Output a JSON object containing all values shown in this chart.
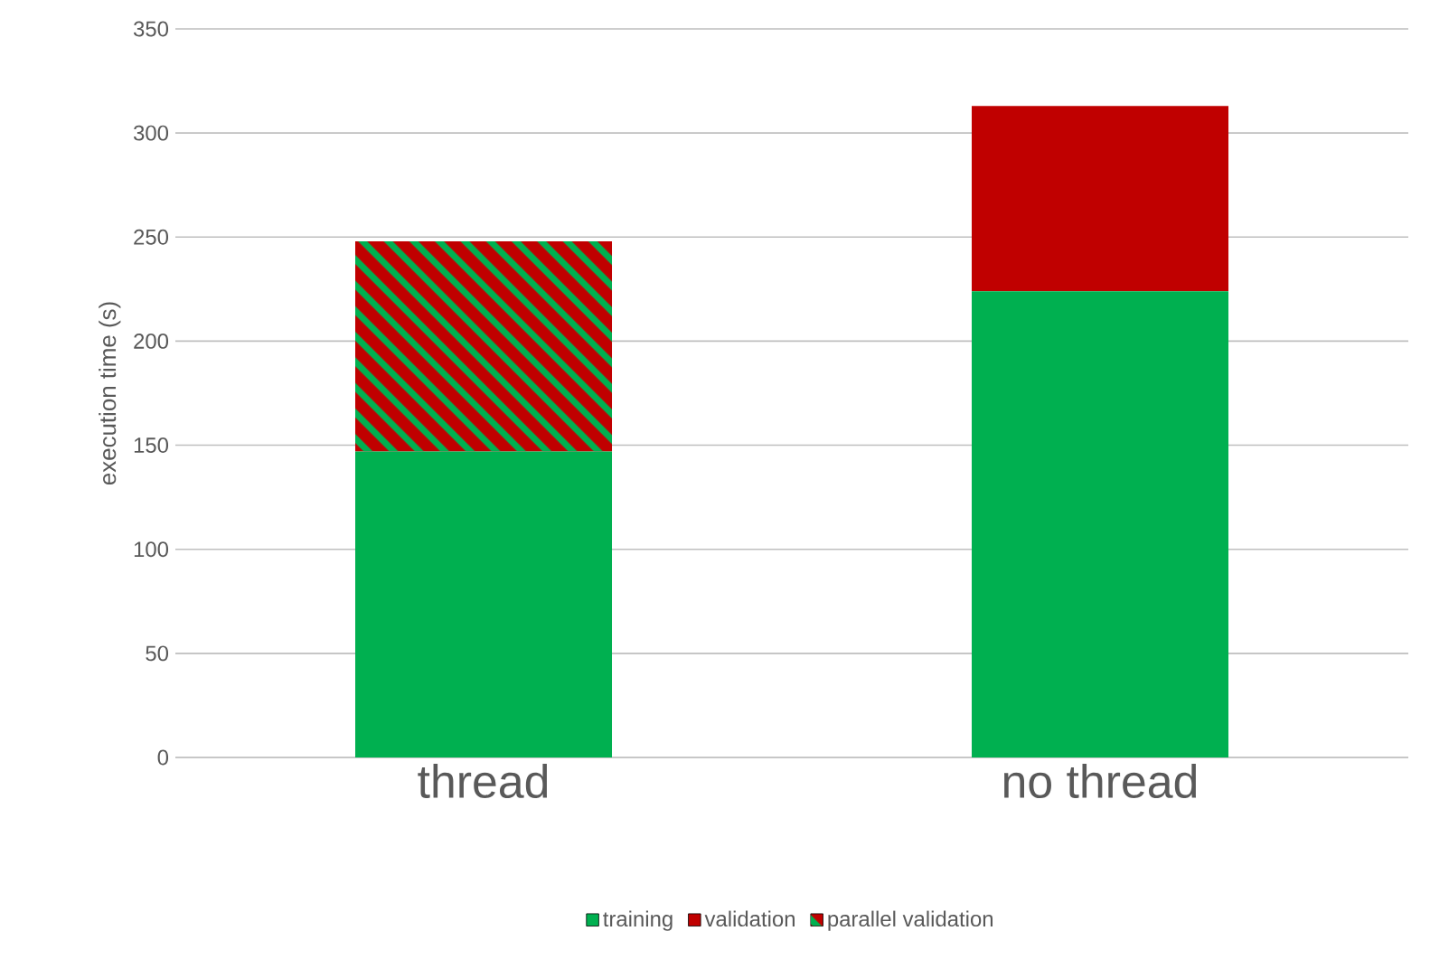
{
  "chart_data": {
    "type": "bar",
    "stacked": true,
    "categories": [
      "thread",
      "no thread"
    ],
    "ylabel": "execution time (s)",
    "ylim": [
      0,
      350
    ],
    "yticks": [
      0,
      50,
      100,
      150,
      200,
      250,
      300,
      350
    ],
    "grid": "y",
    "legend": "bottom",
    "series": [
      {
        "name": "training",
        "color": "#00b050",
        "values": [
          147,
          224
        ]
      },
      {
        "name": "validation",
        "color": "#c00000",
        "values": [
          null,
          89
        ]
      },
      {
        "name": "parallel validation",
        "color": "#c00000",
        "values": [
          101,
          null
        ]
      }
    ]
  }
}
